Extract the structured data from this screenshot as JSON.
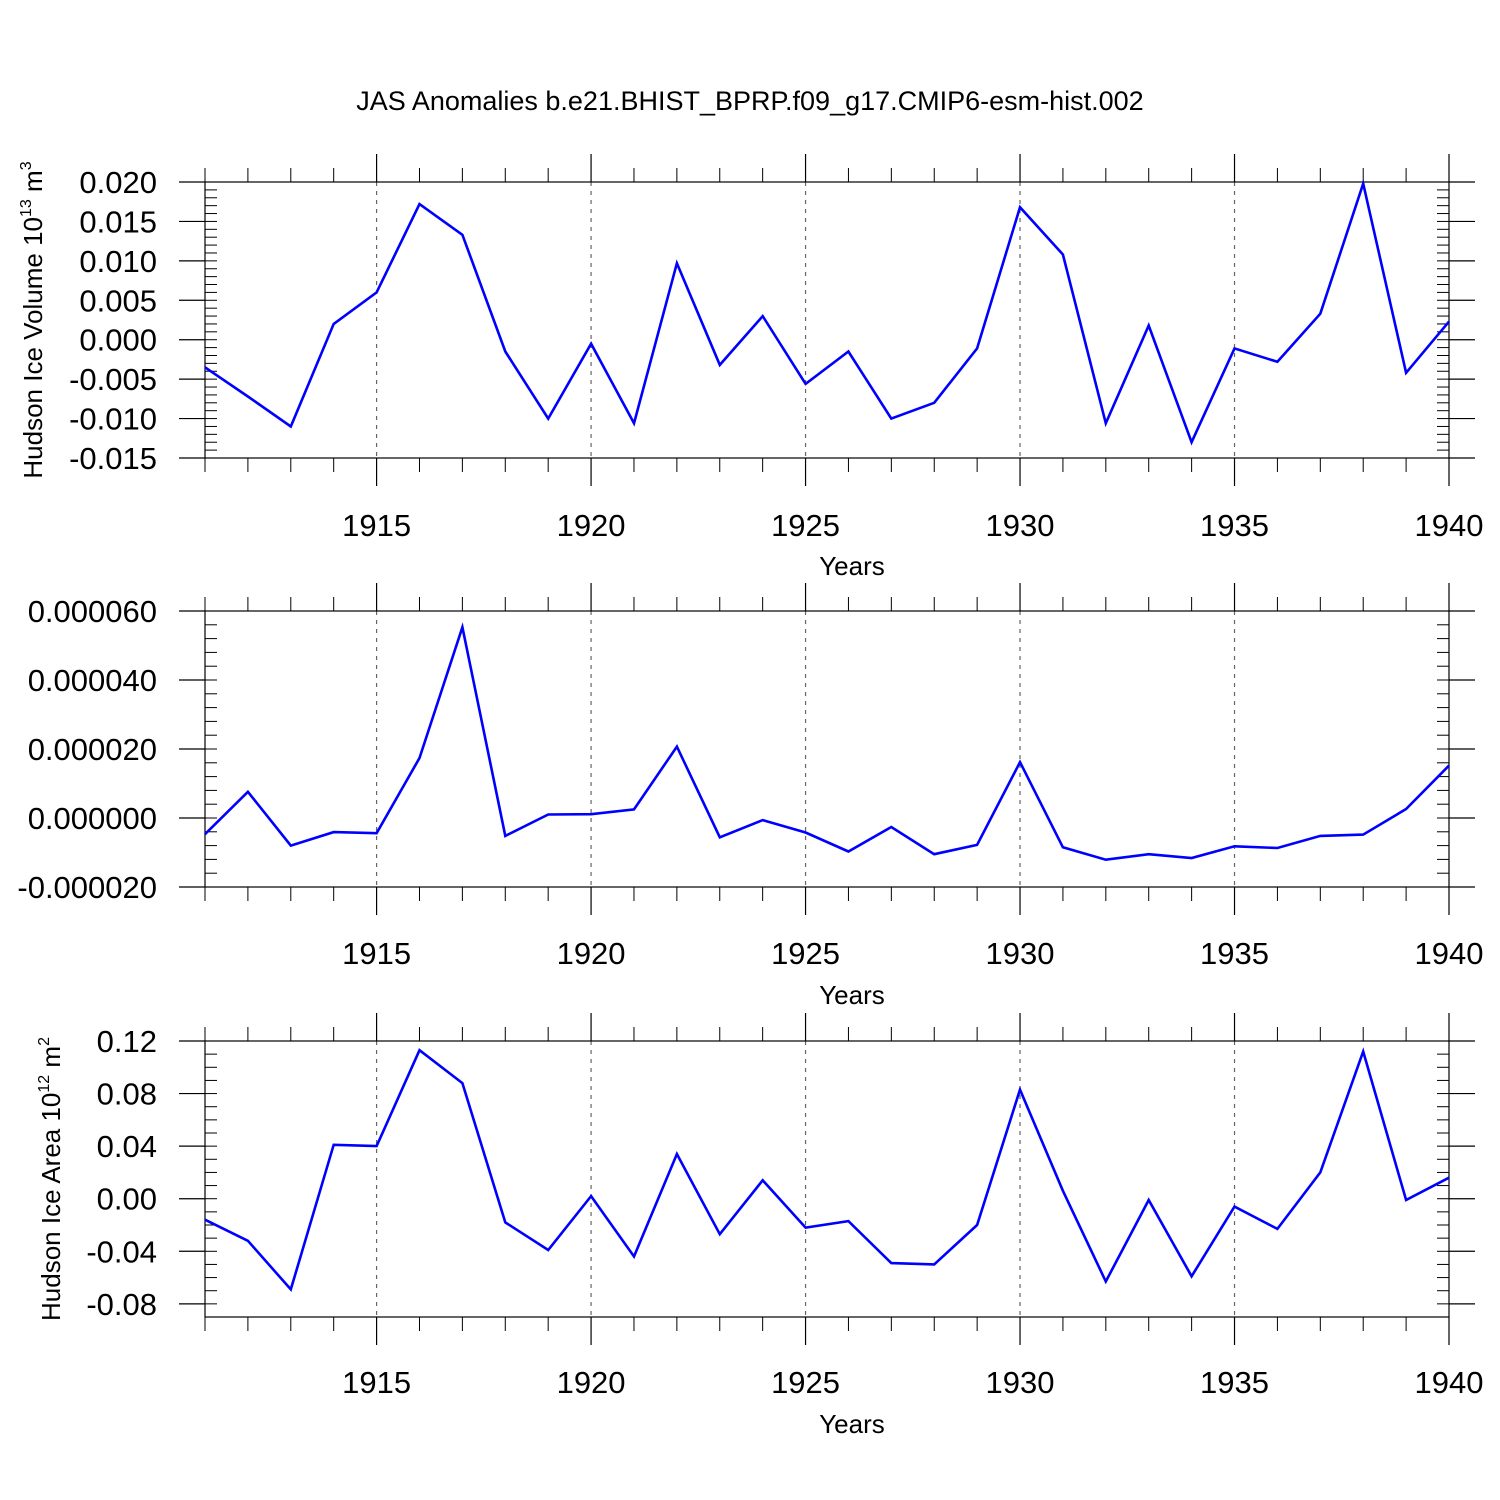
{
  "title": "JAS Anomalies b.e21.BHIST_BPRP.f09_g17.CMIP6-esm-hist.002",
  "chart_data": [
    {
      "type": "line",
      "ylabel": "Hudson Ice Volume 10",
      "ylabel_exp": "13",
      "ylabel_unit": " m",
      "ylabel_unit_exp": "3",
      "xlabel": "Years",
      "xlim": [
        1911,
        1940
      ],
      "ylim": [
        -0.015,
        0.02
      ],
      "x_ticks": [
        1915,
        1920,
        1925,
        1930,
        1935,
        1940
      ],
      "x_tick_labels": [
        "1915",
        "1920",
        "1925",
        "1930",
        "1935",
        "1940"
      ],
      "y_ticks": [
        -0.015,
        -0.01,
        -0.005,
        0.0,
        0.005,
        0.01,
        0.015,
        0.02
      ],
      "y_tick_labels": [
        "-0.015",
        "-0.010",
        "-0.005",
        "0.000",
        "0.005",
        "0.010",
        "0.015",
        "0.020"
      ],
      "y_minor_step": 0.001,
      "grid": "vertical dashed at major x ticks",
      "color": "#0000ff",
      "x": [
        1911,
        1912,
        1913,
        1914,
        1915,
        1916,
        1917,
        1918,
        1919,
        1920,
        1921,
        1922,
        1923,
        1924,
        1925,
        1926,
        1927,
        1928,
        1929,
        1930,
        1931,
        1932,
        1933,
        1934,
        1935,
        1936,
        1937,
        1938,
        1939,
        1940
      ],
      "values": [
        -0.0035,
        -0.0072,
        -0.011,
        0.002,
        0.006,
        0.0172,
        0.0133,
        -0.0015,
        -0.01,
        -0.0005,
        -0.0106,
        0.0097,
        -0.0032,
        0.003,
        -0.0056,
        -0.0015,
        -0.01,
        -0.008,
        -0.0011,
        0.0168,
        0.0108,
        -0.0106,
        0.0018,
        -0.013,
        -0.0011,
        -0.0028,
        0.0033,
        0.0198,
        -0.0042,
        0.0023
      ]
    },
    {
      "type": "line",
      "ylabel": "",
      "xlabel": "Years",
      "xlim": [
        1911,
        1940
      ],
      "ylim": [
        -2e-05,
        6e-05
      ],
      "x_ticks": [
        1915,
        1920,
        1925,
        1930,
        1935,
        1940
      ],
      "x_tick_labels": [
        "1915",
        "1920",
        "1925",
        "1930",
        "1935",
        "1940"
      ],
      "y_ticks": [
        -2e-05,
        0.0,
        2e-05,
        4e-05,
        6e-05
      ],
      "y_tick_labels": [
        "-0.000020",
        "0.000000",
        "0.000020",
        "0.000040",
        "0.000060"
      ],
      "y_minor_step": 4e-06,
      "grid": "vertical dashed at major x ticks",
      "color": "#0000ff",
      "x": [
        1911,
        1912,
        1913,
        1914,
        1915,
        1916,
        1917,
        1918,
        1919,
        1920,
        1921,
        1922,
        1923,
        1924,
        1925,
        1926,
        1927,
        1928,
        1929,
        1930,
        1931,
        1932,
        1933,
        1934,
        1935,
        1936,
        1937,
        1938,
        1939,
        1940
      ],
      "values": [
        -4.7e-06,
        7.6e-06,
        -8e-06,
        -4.1e-06,
        -4.4e-06,
        1.74e-05,
        5.53e-05,
        -5.2e-06,
        1e-06,
        1.1e-06,
        2.5e-06,
        2.07e-05,
        -5.6e-06,
        -6e-07,
        -4.2e-06,
        -9.7e-06,
        -2.6e-06,
        -1.05e-05,
        -7.8e-06,
        1.62e-05,
        -8.5e-06,
        -1.21e-05,
        -1.05e-05,
        -1.16e-05,
        -8.2e-06,
        -8.7e-06,
        -5.2e-06,
        -4.8e-06,
        2.6e-06,
        1.52e-05
      ]
    },
    {
      "type": "line",
      "ylabel": "Hudson Ice Area 10",
      "ylabel_exp": "12",
      "ylabel_unit": " m",
      "ylabel_unit_exp": "2",
      "xlabel": "Years",
      "xlim": [
        1911,
        1940
      ],
      "ylim": [
        -0.09,
        0.12
      ],
      "x_ticks": [
        1915,
        1920,
        1925,
        1930,
        1935,
        1940
      ],
      "x_tick_labels": [
        "1915",
        "1920",
        "1925",
        "1930",
        "1935",
        "1940"
      ],
      "y_ticks": [
        -0.08,
        -0.04,
        0.0,
        0.04,
        0.08,
        0.12
      ],
      "y_tick_labels": [
        "-0.08",
        "-0.04",
        "0.00",
        "0.04",
        "0.08",
        "0.12"
      ],
      "y_minor_step": 0.01,
      "grid": "vertical dashed at major x ticks",
      "color": "#0000ff",
      "x": [
        1911,
        1912,
        1913,
        1914,
        1915,
        1916,
        1917,
        1918,
        1919,
        1920,
        1921,
        1922,
        1923,
        1924,
        1925,
        1926,
        1927,
        1928,
        1929,
        1930,
        1931,
        1932,
        1933,
        1934,
        1935,
        1936,
        1937,
        1938,
        1939,
        1940
      ],
      "values": [
        -0.016,
        -0.032,
        -0.069,
        0.041,
        0.04,
        0.113,
        0.088,
        -0.018,
        -0.039,
        0.002,
        -0.044,
        0.034,
        -0.027,
        0.014,
        -0.022,
        -0.017,
        -0.049,
        -0.05,
        -0.02,
        0.083,
        0.006,
        -0.063,
        -0.001,
        -0.059,
        -0.006,
        -0.023,
        0.02,
        0.112,
        -0.001,
        0.016
      ]
    }
  ]
}
